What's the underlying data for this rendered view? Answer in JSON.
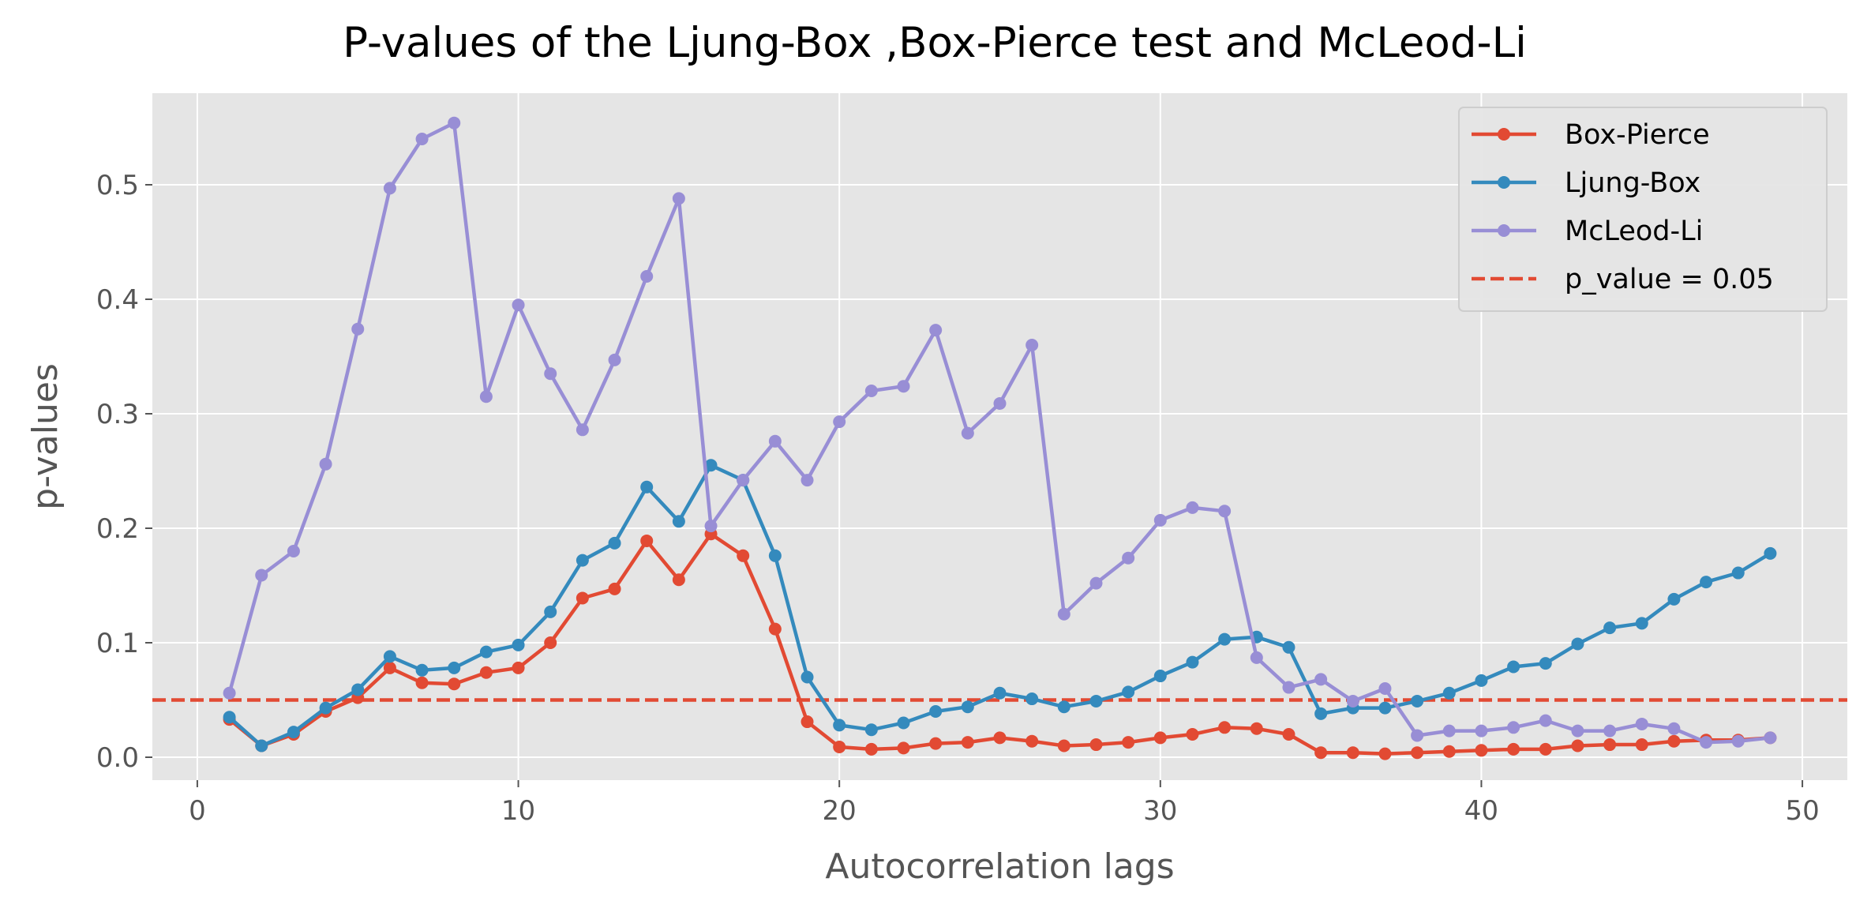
{
  "chart_data": {
    "type": "line",
    "title": "P-values of the Ljung-Box ,Box-Pierce test and McLeod-Li",
    "xlabel": "Autocorrelation lags",
    "ylabel": "p-values",
    "xlim": [
      -1.4,
      51.4
    ],
    "ylim": [
      -0.02,
      0.58
    ],
    "xticks": [
      0,
      10,
      20,
      30,
      40,
      50
    ],
    "xtick_labels": [
      "0",
      "10",
      "20",
      "30",
      "40",
      "50"
    ],
    "yticks": [
      0.0,
      0.1,
      0.2,
      0.3,
      0.4,
      0.5
    ],
    "ytick_labels": [
      "0.0",
      "0.1",
      "0.2",
      "0.3",
      "0.4",
      "0.5"
    ],
    "grid": true,
    "legend_position": "top-right",
    "x": [
      1,
      2,
      3,
      4,
      5,
      6,
      7,
      8,
      9,
      10,
      11,
      12,
      13,
      14,
      15,
      16,
      17,
      18,
      19,
      20,
      21,
      22,
      23,
      24,
      25,
      26,
      27,
      28,
      29,
      30,
      31,
      32,
      33,
      34,
      35,
      36,
      37,
      38,
      39,
      40,
      41,
      42,
      43,
      44,
      45,
      46,
      47,
      48,
      49
    ],
    "series": [
      {
        "name": "Box-Pierce",
        "color": "#E24A33",
        "values": [
          0.033,
          0.01,
          0.02,
          0.04,
          0.052,
          0.078,
          0.065,
          0.064,
          0.074,
          0.078,
          0.1,
          0.139,
          0.147,
          0.189,
          0.155,
          0.195,
          0.176,
          0.112,
          0.031,
          0.009,
          0.007,
          0.008,
          0.012,
          0.013,
          0.017,
          0.014,
          0.01,
          0.011,
          0.013,
          0.017,
          0.02,
          0.026,
          0.025,
          0.02,
          0.004,
          0.004,
          0.003,
          0.004,
          0.005,
          0.006,
          0.007,
          0.007,
          0.01,
          0.011,
          0.011,
          0.014,
          0.015,
          0.015,
          0.017
        ]
      },
      {
        "name": "Ljung-Box",
        "color": "#348ABD",
        "values": [
          0.035,
          0.01,
          0.022,
          0.043,
          0.059,
          0.088,
          0.076,
          0.078,
          0.092,
          0.098,
          0.127,
          0.172,
          0.187,
          0.236,
          0.206,
          0.255,
          0.242,
          0.176,
          0.07,
          0.028,
          0.024,
          0.03,
          0.04,
          0.044,
          0.056,
          0.051,
          0.044,
          0.049,
          0.057,
          0.071,
          0.083,
          0.103,
          0.105,
          0.096,
          0.038,
          0.043,
          0.043,
          0.049,
          0.056,
          0.067,
          0.079,
          0.082,
          0.099,
          0.113,
          0.117,
          0.138,
          0.153,
          0.161,
          0.178
        ]
      },
      {
        "name": "McLeod-Li",
        "color": "#988ED5",
        "values": [
          0.056,
          0.159,
          0.18,
          0.256,
          0.374,
          0.497,
          0.54,
          0.554,
          0.315,
          0.395,
          0.335,
          0.286,
          0.347,
          0.42,
          0.488,
          0.202,
          0.242,
          0.276,
          0.242,
          0.293,
          0.32,
          0.324,
          0.373,
          0.283,
          0.309,
          0.36,
          0.125,
          0.152,
          0.174,
          0.207,
          0.218,
          0.215,
          0.087,
          0.061,
          0.068,
          0.049,
          0.06,
          0.019,
          0.023,
          0.023,
          0.026,
          0.032,
          0.023,
          0.023,
          0.029,
          0.025,
          0.013,
          0.014,
          0.017
        ]
      }
    ],
    "reference_line": {
      "name": "p_value = 0.05",
      "y": 0.05,
      "color": "#E24A33",
      "style": "dashed"
    }
  }
}
